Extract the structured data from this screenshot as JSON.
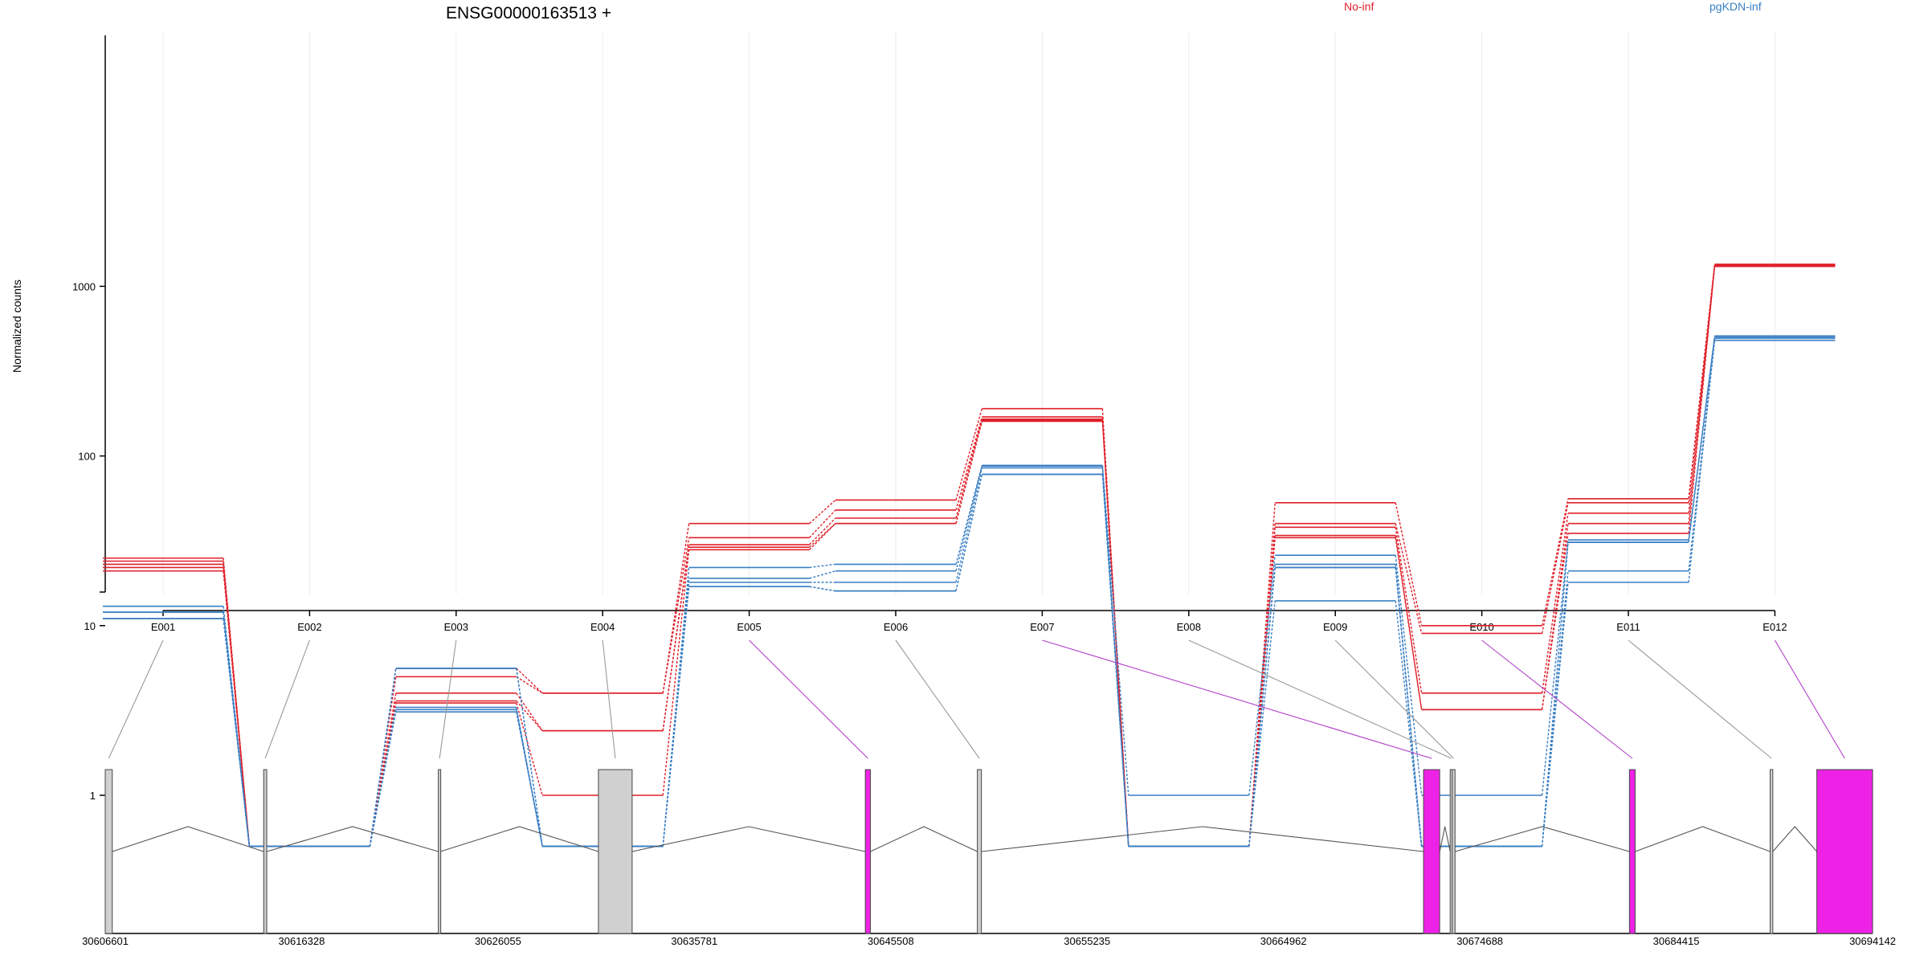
{
  "chart_data": {
    "type": "line",
    "title": "ENSG00000163513 +",
    "ylabel": "Normalized counts",
    "yscale": "log",
    "ylim": [
      0.5,
      1800
    ],
    "yticks": [
      1,
      10,
      100,
      1000
    ],
    "yticklabels": [
      "1",
      "10",
      "100",
      "1000"
    ],
    "categories": [
      "E001",
      "E002",
      "E003",
      "E004",
      "E005",
      "E006",
      "E007",
      "E008",
      "E009",
      "E010",
      "E011",
      "E012"
    ],
    "legend": [
      "No-inf",
      "pgKDN-inf"
    ],
    "colors": {
      "No-inf": "#e0202a",
      "pgKDN-inf": "#3a7fc4"
    },
    "series_groups": [
      {
        "group": "No-inf",
        "lines": [
          [
            25,
            0.5,
            5.6,
            4,
            40,
            55,
            190,
            0.5,
            53,
            10,
            56,
            1350
          ],
          [
            24,
            0.5,
            5.0,
            4,
            33,
            48,
            170,
            0.5,
            40,
            9,
            53,
            1330
          ],
          [
            23,
            0.5,
            4.0,
            2.4,
            30,
            43,
            165,
            0.5,
            38,
            4,
            46,
            1330
          ],
          [
            22,
            0.5,
            3.6,
            2.4,
            29,
            40,
            162,
            0.5,
            34,
            3.2,
            40,
            1310
          ],
          [
            21,
            0.5,
            3.5,
            1,
            28,
            40,
            160,
            0.5,
            33,
            3.2,
            35,
            1310
          ]
        ]
      },
      {
        "group": "pgKDN-inf",
        "lines": [
          [
            13,
            0.5,
            5.6,
            0.5,
            22,
            23,
            88,
            1,
            26,
            1,
            32,
            510
          ],
          [
            12,
            0.5,
            5.6,
            0.5,
            19,
            21,
            87,
            0.5,
            23,
            0.5,
            31,
            500
          ],
          [
            12,
            0.5,
            3.3,
            0.5,
            18,
            18,
            85,
            0.5,
            22,
            0.5,
            31,
            495
          ],
          [
            11,
            0.5,
            3.2,
            0.5,
            17,
            16,
            78,
            0.5,
            14,
            0.5,
            21,
            480
          ],
          [
            11,
            0.5,
            3.1,
            0.5,
            17,
            16,
            78,
            0.5,
            22,
            0.5,
            18,
            480
          ]
        ]
      }
    ],
    "genomic_axis": {
      "range": [
        30606601,
        30694142
      ],
      "tick_labels": [
        "30606601",
        "30616328",
        "30626055",
        "30635781",
        "30645508",
        "30655235",
        "30664962",
        "30674688",
        "30684415",
        "30694142"
      ],
      "exons": [
        {
          "id": "E001",
          "start": 30606601,
          "end": 30606950,
          "highlight": false
        },
        {
          "id": "E002",
          "start": 30614450,
          "end": 30614600,
          "highlight": false
        },
        {
          "id": "E003",
          "start": 30623100,
          "end": 30623200,
          "highlight": false
        },
        {
          "id": "E004",
          "start": 30631030,
          "end": 30632700,
          "highlight": false
        },
        {
          "id": "E005",
          "start": 30644250,
          "end": 30644500,
          "highlight": true
        },
        {
          "id": "E006",
          "start": 30649800,
          "end": 30650000,
          "highlight": false
        },
        {
          "id": "E007",
          "start": 30671900,
          "end": 30672700,
          "highlight": true
        },
        {
          "id": "E008",
          "start": 30673220,
          "end": 30673300,
          "highlight": false
        },
        {
          "id": "E009",
          "start": 30673320,
          "end": 30673460,
          "highlight": false
        },
        {
          "id": "E010",
          "start": 30682100,
          "end": 30682380,
          "highlight": true
        },
        {
          "id": "E011",
          "start": 30689070,
          "end": 30689200,
          "highlight": false
        },
        {
          "id": "E012",
          "start": 30691380,
          "end": 30694142,
          "highlight": true
        }
      ]
    }
  }
}
